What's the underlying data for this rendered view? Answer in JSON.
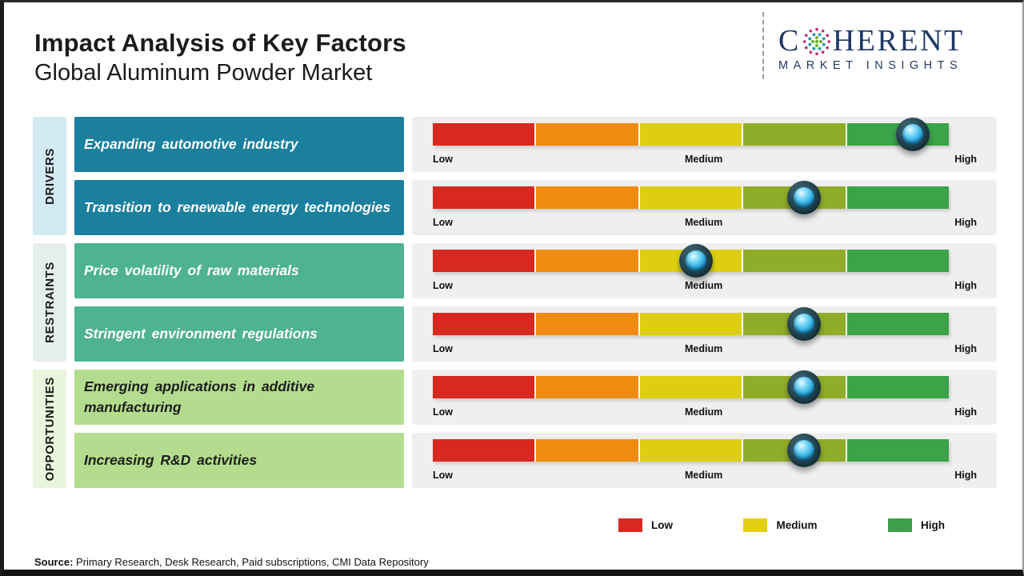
{
  "page": {
    "title": "Impact Analysis of Key Factors",
    "subtitle": "Global Aluminum Powder Market",
    "source_label": "Source:",
    "source_text": " Primary Research, Desk Research, Paid subscriptions, CMI Data Repository"
  },
  "logo": {
    "brand_prefix": "C",
    "brand_suffix": "HERENT",
    "brand_subtext": "MARKET INSIGHTS",
    "navy": "#1f3864"
  },
  "groups": [
    {
      "label": "DRIVERS",
      "strip_color": "#d3e9f4",
      "box_color": "#1b7f9e",
      "box_text_color": "#ffffff"
    },
    {
      "label": "RESTRAINTS",
      "strip_color": "#e4eeeb",
      "box_color": "#4fb290",
      "box_text_color": "#ffffff"
    },
    {
      "label": "OPPORTUNITIES",
      "strip_color": "#e9f5dc",
      "box_color": "#b4dc8e",
      "box_text_color": "#1d1d1d"
    }
  ],
  "rows": [
    {
      "group": "DRIVERS",
      "factor": "Expanding automotive industry",
      "impact_level": "High",
      "impact_position_pct": 93,
      "impact_left": "93%"
    },
    {
      "group": "DRIVERS",
      "factor": "Transition to renewable energy technologies",
      "impact_level": "Medium-High",
      "impact_position_pct": 72,
      "impact_left": "72%"
    },
    {
      "group": "RESTRAINTS",
      "factor": "Price volatility of raw materials",
      "impact_level": "Medium",
      "impact_position_pct": 51,
      "impact_left": "51%"
    },
    {
      "group": "RESTRAINTS",
      "factor": "Stringent environment regulations",
      "impact_level": "Medium-High",
      "impact_position_pct": 72,
      "impact_left": "72%"
    },
    {
      "group": "OPPORTUNITIES",
      "factor": "Emerging applications in additive manufacturing",
      "impact_level": "Medium-High",
      "impact_position_pct": 72,
      "impact_left": "72%"
    },
    {
      "group": "OPPORTUNITIES",
      "factor": "Increasing R&D activities",
      "impact_level": "Medium-High",
      "impact_position_pct": 72,
      "impact_left": "72%"
    }
  ],
  "scale": {
    "labels": {
      "low": "Low",
      "medium": "Medium",
      "high": "High"
    },
    "segment_names": [
      "low",
      "low-medium",
      "medium",
      "medium-high",
      "high"
    ],
    "colors": [
      "#d7291f",
      "#ef8b0e",
      "#ddcf10",
      "#8fad29",
      "#3ba449"
    ]
  },
  "legend": {
    "items": [
      {
        "label": "Low",
        "color": "#d7291f"
      },
      {
        "label": "Medium",
        "color": "#e3ce13"
      },
      {
        "label": "High",
        "color": "#3f9e49"
      }
    ]
  }
}
